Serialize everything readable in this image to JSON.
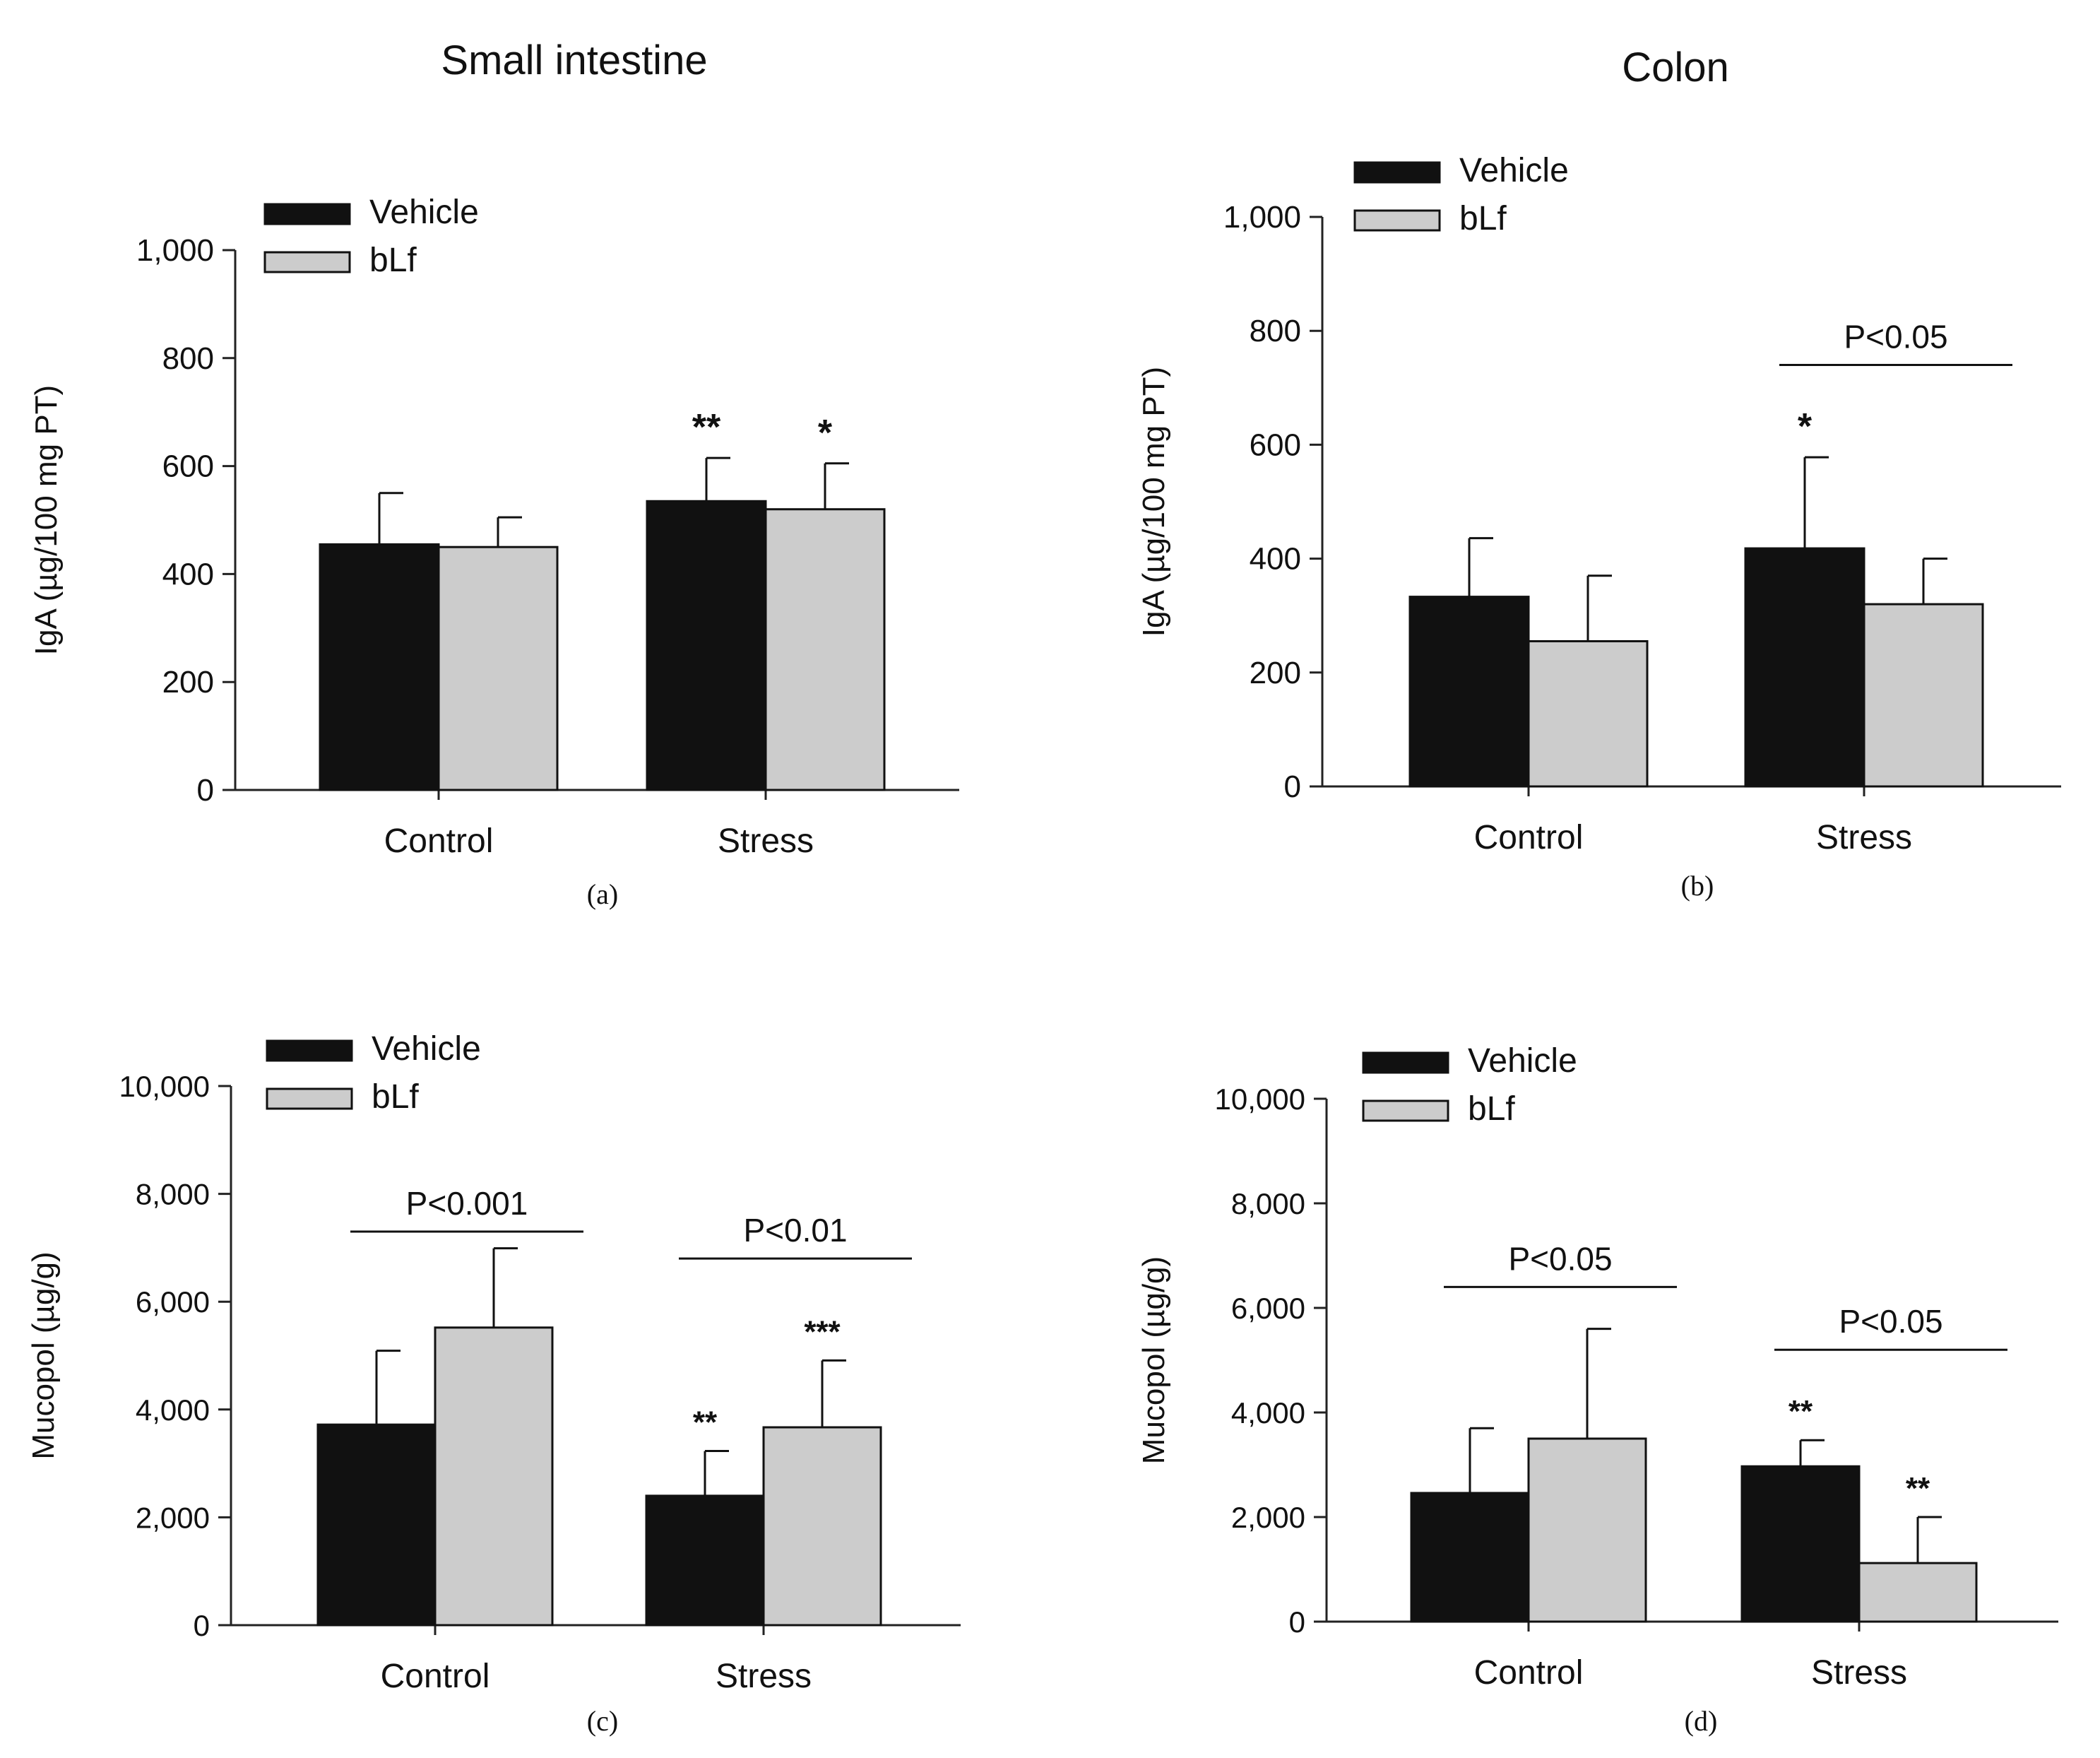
{
  "figure": {
    "column_titles": [
      "Small intestine",
      "Colon"
    ]
  },
  "chart_data": [
    {
      "id": "a",
      "panel_label": "(a)",
      "type": "bar",
      "title": "Small intestine",
      "xlabel": "",
      "ylabel": "IgA (µg/100 mg PT)",
      "ylim": [
        0,
        1000
      ],
      "yticks": [
        0,
        200,
        400,
        600,
        800,
        1000
      ],
      "ytick_labels": [
        "0",
        "200",
        "400",
        "600",
        "800",
        "1,000"
      ],
      "categories": [
        "Control",
        "Stress"
      ],
      "legend": [
        "Vehicle",
        "bLf"
      ],
      "legend_position": "top-left",
      "grid": false,
      "series": [
        {
          "name": "Vehicle",
          "color": "#111111",
          "values": [
            455,
            535
          ],
          "errors": [
            95,
            80
          ],
          "marks": [
            "",
            "**"
          ]
        },
        {
          "name": "bLf",
          "color": "#cccccc",
          "values": [
            450,
            520
          ],
          "errors": [
            55,
            85
          ],
          "marks": [
            "",
            "*"
          ]
        }
      ],
      "brackets": []
    },
    {
      "id": "b",
      "panel_label": "(b)",
      "type": "bar",
      "title": "Colon",
      "xlabel": "",
      "ylabel": "IgA (µg/100 mg PT)",
      "ylim": [
        0,
        1000
      ],
      "yticks": [
        0,
        200,
        400,
        600,
        800,
        1000
      ],
      "ytick_labels": [
        "0",
        "200",
        "400",
        "600",
        "800",
        "1,000"
      ],
      "categories": [
        "Control",
        "Stress"
      ],
      "legend": [
        "Vehicle",
        "bLf"
      ],
      "legend_position": "top-left",
      "grid": false,
      "series": [
        {
          "name": "Vehicle",
          "color": "#111111",
          "values": [
            333,
            418
          ],
          "errors": [
            103,
            160
          ],
          "marks": [
            "",
            "*"
          ]
        },
        {
          "name": "bLf",
          "color": "#cccccc",
          "values": [
            255,
            320
          ],
          "errors": [
            115,
            80
          ],
          "marks": [
            "",
            ""
          ]
        }
      ],
      "brackets": [
        {
          "category": 1,
          "label": "P<0.05",
          "y": 740
        }
      ]
    },
    {
      "id": "c",
      "panel_label": "(c)",
      "type": "bar",
      "title": "",
      "xlabel": "",
      "ylabel": "Mucopol (µg/g)",
      "ylim": [
        0,
        10000
      ],
      "yticks": [
        0,
        2000,
        4000,
        6000,
        8000,
        10000
      ],
      "ytick_labels": [
        "0",
        "2,000",
        "4,000",
        "6,000",
        "8,000",
        "10,000"
      ],
      "categories": [
        "Control",
        "Stress"
      ],
      "legend": [
        "Vehicle",
        "bLf"
      ],
      "legend_position": "top-left",
      "grid": false,
      "series": [
        {
          "name": "Vehicle",
          "color": "#111111",
          "values": [
            3720,
            2400
          ],
          "errors": [
            1370,
            830
          ],
          "marks": [
            "",
            "**"
          ]
        },
        {
          "name": "bLf",
          "color": "#cccccc",
          "values": [
            5520,
            3670
          ],
          "errors": [
            1470,
            1240
          ],
          "marks": [
            "",
            "***"
          ]
        }
      ],
      "brackets": [
        {
          "category": 0,
          "label": "P<0.001",
          "y": 7300
        },
        {
          "category": 1,
          "label": "P<0.01",
          "y": 6800
        }
      ]
    },
    {
      "id": "d",
      "panel_label": "(d)",
      "type": "bar",
      "title": "",
      "xlabel": "",
      "ylabel": "Mucopol (µg/g)",
      "ylim": [
        0,
        10000
      ],
      "yticks": [
        0,
        2000,
        4000,
        6000,
        8000,
        10000
      ],
      "ytick_labels": [
        "0",
        "2,000",
        "4,000",
        "6,000",
        "8,000",
        "10,000"
      ],
      "categories": [
        "Control",
        "Stress"
      ],
      "legend": [
        "Vehicle",
        "bLf"
      ],
      "legend_position": "top-left",
      "grid": false,
      "series": [
        {
          "name": "Vehicle",
          "color": "#111111",
          "values": [
            2460,
            2970
          ],
          "errors": [
            1240,
            500
          ],
          "marks": [
            "",
            "**"
          ]
        },
        {
          "name": "bLf",
          "color": "#cccccc",
          "values": [
            3500,
            1120
          ],
          "errors": [
            2100,
            880
          ],
          "marks": [
            "",
            "**"
          ]
        }
      ],
      "brackets": [
        {
          "category": 0,
          "label": "P<0.05",
          "y": 6400
        },
        {
          "category": 1,
          "label": "P<0.05",
          "y": 5200
        }
      ]
    }
  ]
}
